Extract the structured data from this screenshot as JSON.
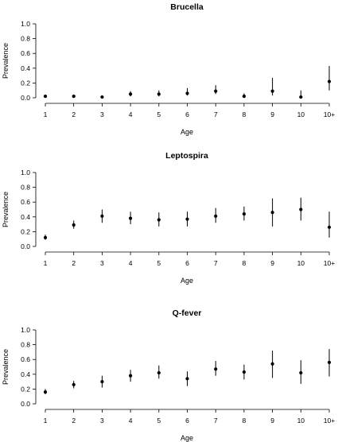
{
  "chart_data": [
    {
      "type": "scatter",
      "title": "Brucella",
      "xlabel": "Age",
      "ylabel": "Prevalence",
      "ylim": [
        0,
        1.0
      ],
      "yticks": [
        "0.0",
        "0.2",
        "0.4",
        "0.6",
        "0.8",
        "1.0"
      ],
      "categories": [
        "1",
        "2",
        "3",
        "4",
        "5",
        "6",
        "7",
        "8",
        "9",
        "10",
        "10+"
      ],
      "values": [
        0.02,
        0.02,
        0.01,
        0.05,
        0.05,
        0.06,
        0.09,
        0.02,
        0.09,
        0.01,
        0.22
      ],
      "lower": [
        0.01,
        0.01,
        0.0,
        0.02,
        0.02,
        0.03,
        0.05,
        0.0,
        0.03,
        0.0,
        0.1
      ],
      "upper": [
        0.04,
        0.04,
        0.03,
        0.09,
        0.1,
        0.13,
        0.17,
        0.06,
        0.27,
        0.1,
        0.43
      ],
      "grid": false
    },
    {
      "type": "scatter",
      "title": "Leptospira",
      "xlabel": "Age",
      "ylabel": "Prevalence",
      "ylim": [
        0,
        1.0
      ],
      "yticks": [
        "0.0",
        "0.2",
        "0.4",
        "0.6",
        "0.8",
        "1.0"
      ],
      "categories": [
        "1",
        "2",
        "3",
        "4",
        "5",
        "6",
        "7",
        "8",
        "9",
        "10",
        "10+"
      ],
      "values": [
        0.12,
        0.29,
        0.41,
        0.38,
        0.36,
        0.37,
        0.41,
        0.44,
        0.46,
        0.5,
        0.26
      ],
      "lower": [
        0.09,
        0.24,
        0.32,
        0.3,
        0.27,
        0.27,
        0.32,
        0.35,
        0.27,
        0.35,
        0.12
      ],
      "upper": [
        0.16,
        0.35,
        0.5,
        0.47,
        0.46,
        0.47,
        0.52,
        0.54,
        0.65,
        0.66,
        0.47
      ],
      "grid": false
    },
    {
      "type": "scatter",
      "title": "Q-fever",
      "xlabel": "Age",
      "ylabel": "Prevalence",
      "ylim": [
        0,
        1.0
      ],
      "yticks": [
        "0.0",
        "0.2",
        "0.4",
        "0.6",
        "0.8",
        "1.0"
      ],
      "categories": [
        "1",
        "2",
        "3",
        "4",
        "5",
        "6",
        "7",
        "8",
        "9",
        "10",
        "10+"
      ],
      "values": [
        0.16,
        0.26,
        0.3,
        0.38,
        0.42,
        0.34,
        0.47,
        0.43,
        0.54,
        0.42,
        0.56
      ],
      "lower": [
        0.13,
        0.21,
        0.22,
        0.3,
        0.34,
        0.24,
        0.38,
        0.33,
        0.35,
        0.27,
        0.37
      ],
      "upper": [
        0.2,
        0.31,
        0.38,
        0.46,
        0.52,
        0.44,
        0.58,
        0.53,
        0.72,
        0.59,
        0.74
      ],
      "grid": false
    }
  ]
}
